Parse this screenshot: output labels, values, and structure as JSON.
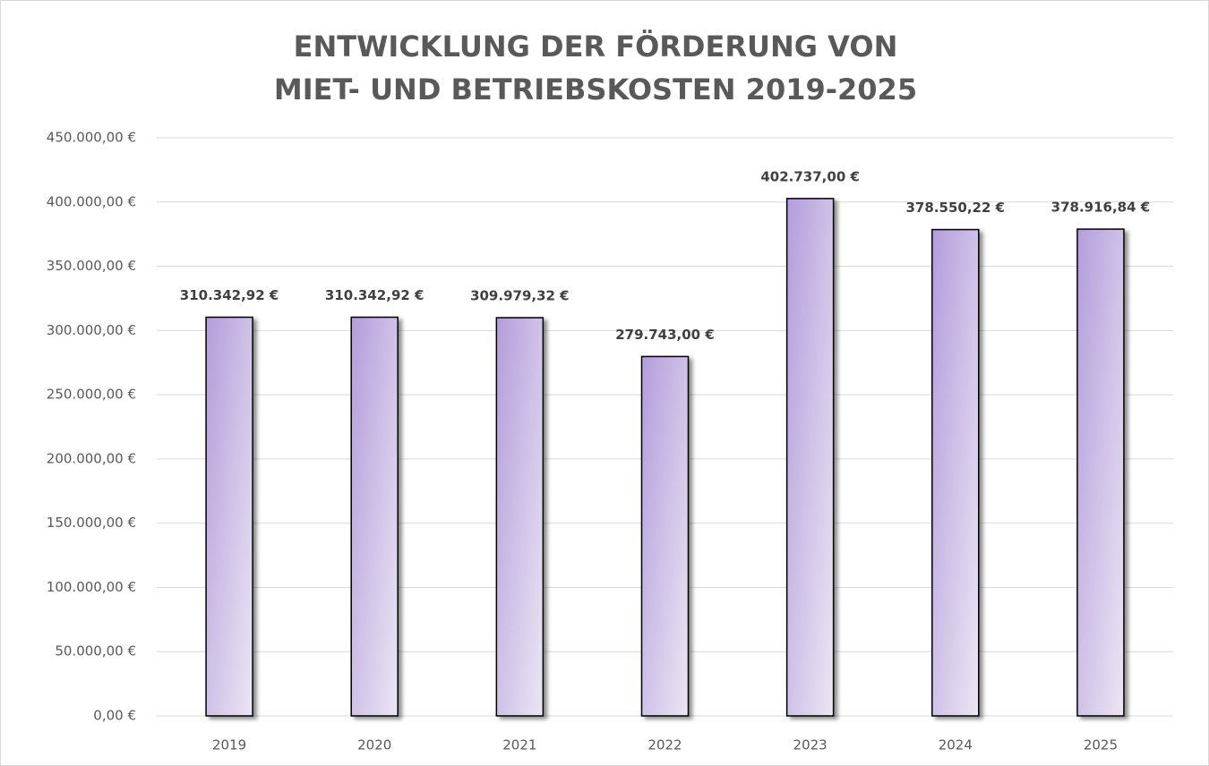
{
  "chart_data": {
    "type": "bar",
    "title": [
      "ENTWICKLUNG DER FÖRDERUNG VON",
      "MIET- UND BETRIEBSKOSTEN 2019-2025"
    ],
    "categories": [
      "2019",
      "2020",
      "2021",
      "2022",
      "2023",
      "2024",
      "2025"
    ],
    "values": [
      310342.92,
      310342.92,
      309979.32,
      279743,
      402737,
      378550.22,
      378916.84
    ],
    "value_labels": [
      "310.342,92 €",
      "310.342,92 €",
      "309.979,32 €",
      "279.743,00 €",
      "402.737,00 €",
      "378.550,22 €",
      "378.916,84 €"
    ],
    "color": "#b39ddb",
    "ylim": [
      0,
      450000
    ],
    "yticks": [
      {
        "value": 0,
        "label": "0,00 €"
      },
      {
        "value": 50000,
        "label": "50.000,00 €"
      },
      {
        "value": 100000,
        "label": "100.000,00 €"
      },
      {
        "value": 150000,
        "label": "150.000,00 €"
      },
      {
        "value": 200000,
        "label": "200.000,00 €"
      },
      {
        "value": 250000,
        "label": "250.000,00 €"
      },
      {
        "value": 300000,
        "label": "300.000,00 €"
      },
      {
        "value": 350000,
        "label": "350.000,00 €"
      },
      {
        "value": 400000,
        "label": "400.000,00 €"
      },
      {
        "value": 450000,
        "label": "450.000,00 €"
      }
    ],
    "grid": true
  }
}
